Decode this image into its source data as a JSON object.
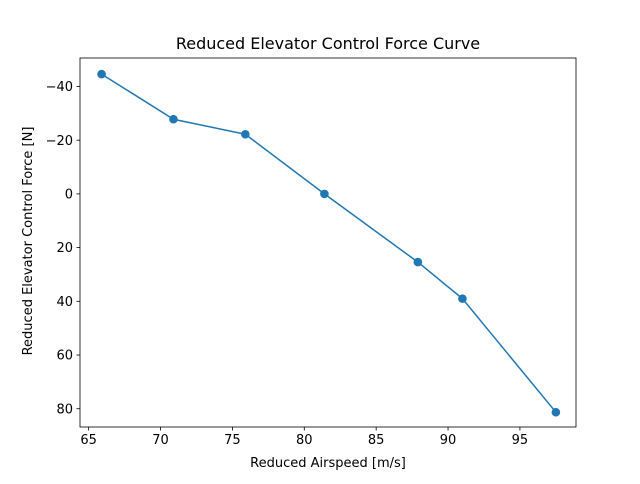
{
  "chart_data": {
    "type": "line",
    "title": "Reduced Elevator Control Force Curve",
    "xlabel": "Reduced Airspeed [m/s]",
    "ylabel": "Reduced Elevator Control Force [N]",
    "xlim": [
      64.4,
      98.9
    ],
    "ylim": [
      86.8,
      -50.6
    ],
    "y_inverted": true,
    "xticks": [
      65,
      70,
      75,
      80,
      85,
      90,
      95
    ],
    "yticks": [
      -40,
      -20,
      0,
      20,
      40,
      60,
      80
    ],
    "xtick_labels": [
      "65",
      "70",
      "75",
      "80",
      "85",
      "90",
      "95"
    ],
    "ytick_labels": [
      "−40",
      "−20",
      "0",
      "20",
      "40",
      "60",
      "80"
    ],
    "grid": false,
    "marker": "circle",
    "series": [
      {
        "color": "#1f77b4",
        "x": [
          65.9,
          70.9,
          75.9,
          81.4,
          87.9,
          91.0,
          97.5
        ],
        "y": [
          -44.6,
          -27.8,
          -22.2,
          0.0,
          25.4,
          39.0,
          81.3
        ]
      }
    ]
  }
}
